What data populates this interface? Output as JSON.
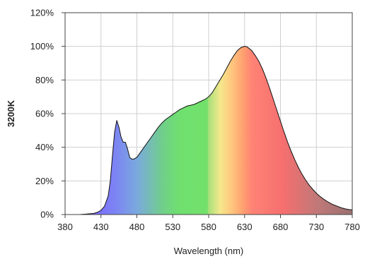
{
  "chart_data": {
    "type": "area",
    "title": "",
    "xlabel": "Wavelength (nm)",
    "ylabel": "3200K",
    "xlim": [
      380,
      780
    ],
    "ylim": [
      0,
      120
    ],
    "grid": true,
    "legend": "none",
    "x_ticks": [
      380,
      430,
      480,
      530,
      580,
      630,
      680,
      730,
      780
    ],
    "x_tick_labels": [
      "380",
      "430",
      "480",
      "530",
      "580",
      "630",
      "680",
      "730",
      "780"
    ],
    "y_ticks": [
      0,
      20,
      40,
      60,
      80,
      100,
      120
    ],
    "y_tick_labels": [
      "0%",
      "20%",
      "40%",
      "60%",
      "80%",
      "100%",
      "120%"
    ],
    "x": [
      380,
      400,
      410,
      420,
      425,
      430,
      435,
      440,
      443,
      446,
      449,
      452,
      455,
      458,
      461,
      464,
      467,
      470,
      473,
      476,
      480,
      485,
      490,
      495,
      500,
      505,
      510,
      515,
      520,
      525,
      530,
      535,
      540,
      545,
      550,
      555,
      560,
      565,
      570,
      575,
      580,
      585,
      590,
      595,
      600,
      605,
      610,
      615,
      620,
      625,
      630,
      633,
      635,
      640,
      645,
      650,
      655,
      660,
      665,
      670,
      675,
      680,
      685,
      690,
      695,
      700,
      705,
      710,
      715,
      720,
      725,
      730,
      735,
      740,
      745,
      750,
      755,
      760,
      765,
      770,
      775,
      780
    ],
    "values": [
      0,
      0,
      0.3,
      0.7,
      1.3,
      2.5,
      5,
      11,
      20,
      35,
      49,
      56,
      52,
      46,
      43,
      43,
      39,
      34,
      33,
      33,
      34,
      37,
      40,
      43,
      46,
      49,
      52,
      54.5,
      56.5,
      58,
      59.5,
      61,
      62.5,
      63.5,
      64.5,
      65,
      65.5,
      66.5,
      67.5,
      68.5,
      70,
      72.5,
      76,
      79.5,
      83,
      87,
      91,
      94.5,
      97.5,
      99.3,
      100,
      99.8,
      99.2,
      97.5,
      94.5,
      91,
      86.5,
      81,
      75,
      68.5,
      62,
      55.5,
      49,
      43,
      37.5,
      32.5,
      28,
      24,
      20.5,
      17.5,
      15,
      12.7,
      10.8,
      9.2,
      7.8,
      6.6,
      5.6,
      4.8,
      4,
      3.4,
      3,
      2.8
    ]
  }
}
